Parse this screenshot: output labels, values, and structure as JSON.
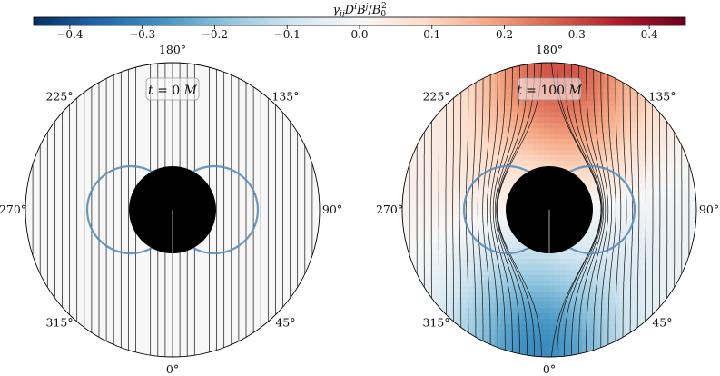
{
  "chart_data": {
    "type": "heatmap",
    "colorbar": {
      "label_parts": [
        "γ",
        "ij",
        "D",
        "i",
        "B",
        "j",
        "/",
        "B",
        "0",
        "2"
      ],
      "range": [
        -0.45,
        0.45
      ],
      "ticks": [
        -0.4,
        -0.3,
        -0.2,
        -0.1,
        0.0,
        0.1,
        0.2,
        0.3,
        0.4
      ],
      "tick_labels": [
        "−0.4",
        "−0.3",
        "−0.2",
        "−0.1",
        "0.0",
        "0.1",
        "0.2",
        "0.3",
        "0.4"
      ],
      "colormap": [
        "#053061",
        "#2166ac",
        "#4393c3",
        "#92c5de",
        "#d1e5f0",
        "#f7f7f7",
        "#fddbc7",
        "#f4a582",
        "#d6604d",
        "#b2182b",
        "#67001f"
      ],
      "placement": "top"
    },
    "panels": [
      {
        "name": "left",
        "time_label": "t = 0 M",
        "time_parts": [
          "t",
          " = 0 ",
          "M"
        ],
        "field_amplitude": 0.0,
        "horizon_color": "#000000",
        "ergo_color": "#5b8db8"
      },
      {
        "name": "right",
        "time_label": "t = 100 M",
        "time_parts": [
          "t",
          " = 100 ",
          "M"
        ],
        "field_amplitude": 0.36,
        "horizon_color": "#000000",
        "ergo_color": "#5b8db8"
      }
    ],
    "angle_labels": [
      {
        "angle": 180,
        "text": "180°"
      },
      {
        "angle": 135,
        "text": "135°"
      },
      {
        "angle": 90,
        "text": "90°"
      },
      {
        "angle": 45,
        "text": "45°"
      },
      {
        "angle": 0,
        "text": "0°"
      },
      {
        "angle": 315,
        "text": "315°"
      },
      {
        "angle": 270,
        "text": "270°"
      },
      {
        "angle": 225,
        "text": "225°"
      }
    ]
  }
}
